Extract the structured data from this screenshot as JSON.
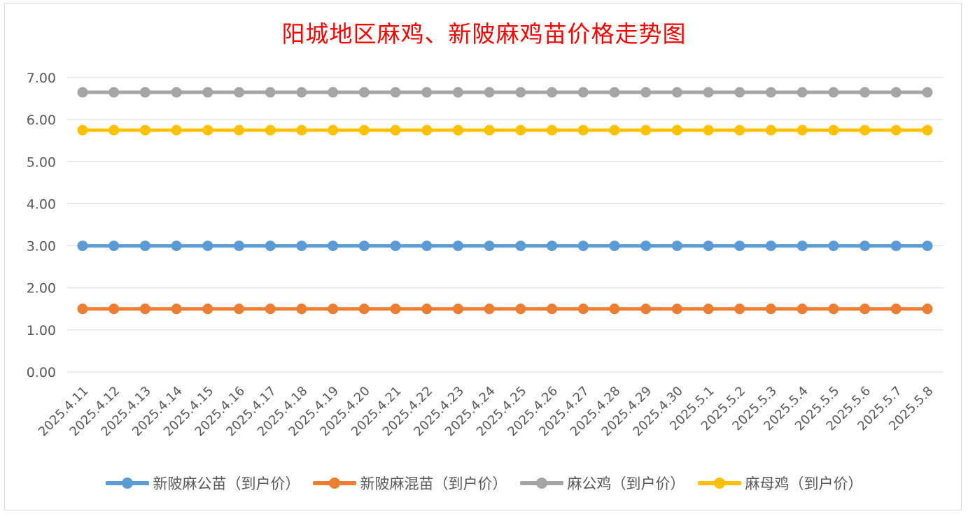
{
  "chart_data": {
    "type": "line",
    "title": "阳城地区麻鸡、新陂麻鸡苗价格走势图",
    "xlabel": "",
    "ylabel": "",
    "ylim": [
      0,
      7
    ],
    "ytick_labels": [
      "0.00",
      "1.00",
      "2.00",
      "3.00",
      "4.00",
      "5.00",
      "6.00",
      "7.00"
    ],
    "categories": [
      "2025.4.11",
      "2025.4.12",
      "2025.4.13",
      "2025.4.14",
      "2025.4.15",
      "2025.4.16",
      "2025.4.17",
      "2025.4.18",
      "2025.4.19",
      "2025.4.20",
      "2025.4.21",
      "2025.4.22",
      "2025.4.23",
      "2025.4.24",
      "2025.4.25",
      "2025.4.26",
      "2025.4.27",
      "2025.4.28",
      "2025.4.29",
      "2025.4.30",
      "2025.5.1",
      "2025.5.2",
      "2025.5.3",
      "2025.5.4",
      "2025.5.5",
      "2025.5.6",
      "2025.5.7",
      "2025.5.8"
    ],
    "series": [
      {
        "name": "新陂麻公苗（到户价）",
        "color": "#5b9bd5",
        "values": [
          3,
          3,
          3,
          3,
          3,
          3,
          3,
          3,
          3,
          3,
          3,
          3,
          3,
          3,
          3,
          3,
          3,
          3,
          3,
          3,
          3,
          3,
          3,
          3,
          3,
          3,
          3,
          3
        ]
      },
      {
        "name": "新陂麻混苗（到户价）",
        "color": "#ed7d31",
        "values": [
          1.5,
          1.5,
          1.5,
          1.5,
          1.5,
          1.5,
          1.5,
          1.5,
          1.5,
          1.5,
          1.5,
          1.5,
          1.5,
          1.5,
          1.5,
          1.5,
          1.5,
          1.5,
          1.5,
          1.5,
          1.5,
          1.5,
          1.5,
          1.5,
          1.5,
          1.5,
          1.5,
          1.5
        ]
      },
      {
        "name": "麻公鸡（到户价）",
        "color": "#a5a5a5",
        "values": [
          6.65,
          6.65,
          6.65,
          6.65,
          6.65,
          6.65,
          6.65,
          6.65,
          6.65,
          6.65,
          6.65,
          6.65,
          6.65,
          6.65,
          6.65,
          6.65,
          6.65,
          6.65,
          6.65,
          6.65,
          6.65,
          6.65,
          6.65,
          6.65,
          6.65,
          6.65,
          6.65,
          6.65
        ]
      },
      {
        "name": "麻母鸡（到户价）",
        "color": "#ffc000",
        "values": [
          5.75,
          5.75,
          5.75,
          5.75,
          5.75,
          5.75,
          5.75,
          5.75,
          5.75,
          5.75,
          5.75,
          5.75,
          5.75,
          5.75,
          5.75,
          5.75,
          5.75,
          5.75,
          5.75,
          5.75,
          5.75,
          5.75,
          5.75,
          5.75,
          5.75,
          5.75,
          5.75,
          5.75
        ]
      }
    ],
    "grid": true,
    "legend_position": "bottom"
  }
}
